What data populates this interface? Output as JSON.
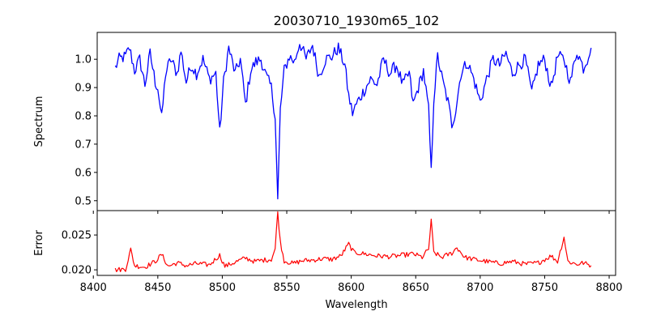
{
  "chart_data": [
    {
      "type": "line",
      "title": "20030710_1930m65_102",
      "xlabel": "",
      "ylabel": "Spectrum",
      "xlim": [
        8403,
        8805
      ],
      "ylim": [
        0.465,
        1.095
      ],
      "xticks": [
        8400,
        8450,
        8500,
        8550,
        8600,
        8650,
        8700,
        8750,
        8800
      ],
      "yticks": [
        0.5,
        0.6,
        0.7,
        0.8,
        0.9,
        1.0
      ],
      "ytick_labels": [
        "0.5",
        "0.6",
        "0.7",
        "0.8",
        "0.9",
        "1.0"
      ],
      "series": [
        {
          "color": "#0000ff",
          "x_range": [
            8417,
            8786
          ],
          "anchor_points": [
            [
              8417,
              0.97
            ],
            [
              8420,
              1.0
            ],
            [
              8425,
              1.01
            ],
            [
              8428,
              1.04
            ],
            [
              8432,
              0.96
            ],
            [
              8436,
              1.0
            ],
            [
              8440,
              0.91
            ],
            [
              8444,
              1.02
            ],
            [
              8448,
              0.92
            ],
            [
              8450,
              0.9
            ],
            [
              8453,
              0.79
            ],
            [
              8456,
              0.95
            ],
            [
              8460,
              1.0
            ],
            [
              8465,
              0.95
            ],
            [
              8468,
              1.03
            ],
            [
              8472,
              0.92
            ],
            [
              8476,
              0.98
            ],
            [
              8480,
              0.95
            ],
            [
              8485,
              1.0
            ],
            [
              8490,
              0.93
            ],
            [
              8495,
              0.95
            ],
            [
              8498,
              0.74
            ],
            [
              8501,
              0.92
            ],
            [
              8505,
              1.04
            ],
            [
              8510,
              0.95
            ],
            [
              8514,
              1.0
            ],
            [
              8518,
              0.84
            ],
            [
              8522,
              0.96
            ],
            [
              8526,
              0.99
            ],
            [
              8530,
              1.0
            ],
            [
              8534,
              0.94
            ],
            [
              8538,
              0.9
            ],
            [
              8541,
              0.8
            ],
            [
              8543,
              0.5
            ],
            [
              8545,
              0.82
            ],
            [
              8548,
              0.96
            ],
            [
              8552,
              1.01
            ],
            [
              8556,
              0.99
            ],
            [
              8560,
              1.06
            ],
            [
              8565,
              1.0
            ],
            [
              8570,
              1.05
            ],
            [
              8575,
              0.94
            ],
            [
              8580,
              1.0
            ],
            [
              8585,
              1.01
            ],
            [
              8590,
              1.04
            ],
            [
              8595,
              0.98
            ],
            [
              8598,
              0.87
            ],
            [
              8601,
              0.81
            ],
            [
              8605,
              0.85
            ],
            [
              8610,
              0.89
            ],
            [
              8615,
              0.93
            ],
            [
              8620,
              0.91
            ],
            [
              8625,
              1.0
            ],
            [
              8630,
              0.95
            ],
            [
              8635,
              0.98
            ],
            [
              8640,
              0.91
            ],
            [
              8645,
              0.95
            ],
            [
              8648,
              0.84
            ],
            [
              8652,
              0.9
            ],
            [
              8656,
              0.96
            ],
            [
              8660,
              0.82
            ],
            [
              8662,
              0.6
            ],
            [
              8664,
              0.86
            ],
            [
              8667,
              1.01
            ],
            [
              8671,
              0.92
            ],
            [
              8675,
              0.85
            ],
            [
              8678,
              0.77
            ],
            [
              8681,
              0.82
            ],
            [
              8685,
              0.95
            ],
            [
              8690,
              0.99
            ],
            [
              8695,
              0.93
            ],
            [
              8700,
              0.85
            ],
            [
              8705,
              0.93
            ],
            [
              8710,
              1.0
            ],
            [
              8715,
              0.98
            ],
            [
              8720,
              1.02
            ],
            [
              8725,
              0.95
            ],
            [
              8730,
              0.98
            ],
            [
              8735,
              1.0
            ],
            [
              8740,
              0.88
            ],
            [
              8745,
              0.98
            ],
            [
              8750,
              1.0
            ],
            [
              8755,
              0.9
            ],
            [
              8760,
              1.01
            ],
            [
              8765,
              1.0
            ],
            [
              8770,
              0.92
            ],
            [
              8775,
              1.03
            ],
            [
              8780,
              0.97
            ],
            [
              8783,
              1.0
            ],
            [
              8786,
              1.05
            ]
          ]
        }
      ]
    },
    {
      "type": "line",
      "title": "",
      "xlabel": "Wavelength",
      "ylabel": "Error",
      "xlim": [
        8403,
        8805
      ],
      "ylim": [
        0.0192,
        0.0285
      ],
      "xticks": [
        8400,
        8450,
        8500,
        8550,
        8600,
        8650,
        8700,
        8750,
        8800
      ],
      "xtick_labels": [
        "8400",
        "8450",
        "8500",
        "8550",
        "8600",
        "8650",
        "8700",
        "8750",
        "8800"
      ],
      "yticks": [
        0.02,
        0.025
      ],
      "ytick_labels": [
        "0.020",
        "0.025"
      ],
      "series": [
        {
          "color": "#ff0000",
          "x_range": [
            8417,
            8786
          ],
          "anchor_points": [
            [
              8417,
              0.02
            ],
            [
              8425,
              0.0201
            ],
            [
              8429,
              0.0229
            ],
            [
              8432,
              0.0206
            ],
            [
              8440,
              0.0204
            ],
            [
              8448,
              0.0212
            ],
            [
              8453,
              0.0222
            ],
            [
              8458,
              0.0205
            ],
            [
              8465,
              0.021
            ],
            [
              8472,
              0.0206
            ],
            [
              8480,
              0.0209
            ],
            [
              8490,
              0.0207
            ],
            [
              8498,
              0.0221
            ],
            [
              8502,
              0.0205
            ],
            [
              8510,
              0.0211
            ],
            [
              8518,
              0.0217
            ],
            [
              8525,
              0.0212
            ],
            [
              8532,
              0.0214
            ],
            [
              8538,
              0.0215
            ],
            [
              8541,
              0.023
            ],
            [
              8543,
              0.0283
            ],
            [
              8545,
              0.024
            ],
            [
              8548,
              0.0213
            ],
            [
              8555,
              0.0209
            ],
            [
              8562,
              0.0213
            ],
            [
              8570,
              0.0214
            ],
            [
              8578,
              0.0216
            ],
            [
              8585,
              0.0215
            ],
            [
              8592,
              0.022
            ],
            [
              8598,
              0.0237
            ],
            [
              8602,
              0.0225
            ],
            [
              8610,
              0.0223
            ],
            [
              8620,
              0.022
            ],
            [
              8630,
              0.0219
            ],
            [
              8640,
              0.0221
            ],
            [
              8648,
              0.0223
            ],
            [
              8655,
              0.0218
            ],
            [
              8660,
              0.023
            ],
            [
              8662,
              0.027
            ],
            [
              8664,
              0.0225
            ],
            [
              8670,
              0.0218
            ],
            [
              8678,
              0.0224
            ],
            [
              8682,
              0.0232
            ],
            [
              8688,
              0.0218
            ],
            [
              8695,
              0.0215
            ],
            [
              8705,
              0.0212
            ],
            [
              8715,
              0.0209
            ],
            [
              8725,
              0.0212
            ],
            [
              8735,
              0.0208
            ],
            [
              8745,
              0.021
            ],
            [
              8755,
              0.022
            ],
            [
              8760,
              0.0212
            ],
            [
              8765,
              0.0247
            ],
            [
              8768,
              0.0212
            ],
            [
              8775,
              0.0208
            ],
            [
              8780,
              0.021
            ],
            [
              8786,
              0.0206
            ]
          ]
        }
      ]
    }
  ]
}
